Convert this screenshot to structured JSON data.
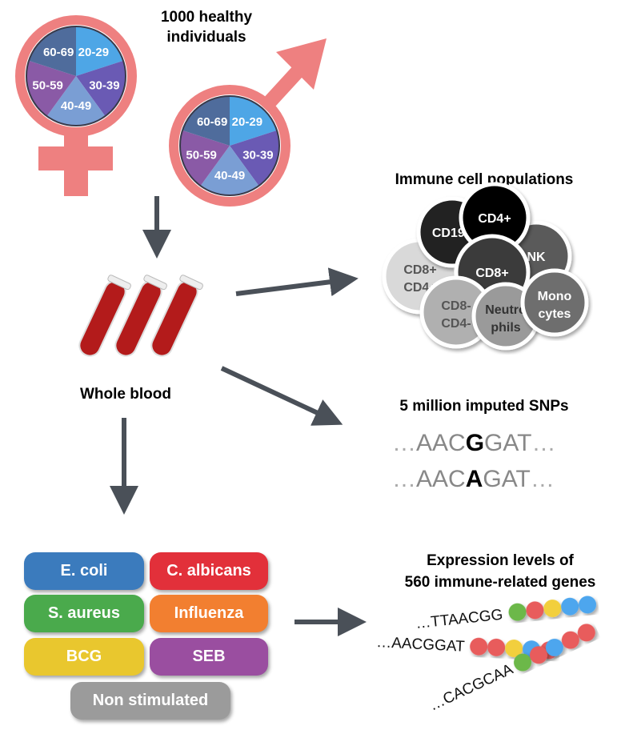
{
  "cohort": {
    "title_line1": "1000 healthy",
    "title_line2": "individuals",
    "age_groups": [
      {
        "label": "20-29",
        "color": "#4ea6e6"
      },
      {
        "label": "30-39",
        "color": "#6a5ab4"
      },
      {
        "label": "40-49",
        "color": "#7a9ed4"
      },
      {
        "label": "50-59",
        "color": "#8a5aa6"
      },
      {
        "label": "60-69",
        "color": "#4f6c9c"
      }
    ],
    "symbol_color": "#ee8080"
  },
  "blood": {
    "label": "Whole blood"
  },
  "cells": {
    "title": "Immune cell populations",
    "items": [
      {
        "l1": "CD8+",
        "l2": "CD4+",
        "fill": "#d9d9d9",
        "text": "#555"
      },
      {
        "l1": "CD19+",
        "l2": "",
        "fill": "#222",
        "text": "#fff"
      },
      {
        "l1": "NK",
        "l2": "",
        "fill": "#5a5a5a",
        "text": "#fff"
      },
      {
        "l1": "CD4+",
        "l2": "",
        "fill": "#000",
        "text": "#fff"
      },
      {
        "l1": "CD8+",
        "l2": "",
        "fill": "#3a3a3a",
        "text": "#fff"
      },
      {
        "l1": "CD8-",
        "l2": "CD4-",
        "fill": "#b0b0b0",
        "text": "#555"
      },
      {
        "l1": "Neutro",
        "l2": "phils",
        "fill": "#9a9a9a",
        "text": "#333"
      },
      {
        "l1": "Mono",
        "l2": "cytes",
        "fill": "#6e6e6e",
        "text": "#fff"
      }
    ]
  },
  "snps": {
    "title": "5 million imputed SNPs",
    "seq1": {
      "prefix": "AAC",
      "allele": "G",
      "suffix": "GAT"
    },
    "seq2": {
      "prefix": "AAC",
      "allele": "A",
      "suffix": "GAT"
    },
    "dots": "…"
  },
  "expression": {
    "title_line1": "Expression levels of",
    "title_line2": "560 immune-related genes",
    "reads": [
      {
        "seq": "…TTAACGG",
        "beads": [
          "#6cb84a",
          "#e85c5c",
          "#f2cf3e",
          "#4ea6ee",
          "#4ea6ee"
        ]
      },
      {
        "seq": "…AACGGAT",
        "beads": [
          "#e85c5c",
          "#e85c5c",
          "#f2cf3e",
          "#4ea6ee",
          "#e85c5c"
        ]
      },
      {
        "seq": "…CACGCAA",
        "beads": [
          "#6cb84a",
          "#e85c5c",
          "#4ea6ee",
          "#e85c5c",
          "#e85c5c"
        ]
      }
    ]
  },
  "stimuli": [
    {
      "label": "E. coli",
      "color": "#3b7bbd"
    },
    {
      "label": "C. albicans",
      "color": "#e2303a"
    },
    {
      "label": "S. aureus",
      "color": "#4aaa4c"
    },
    {
      "label": "Influenza",
      "color": "#f27f30"
    },
    {
      "label": "BCG",
      "color": "#e9c72e"
    },
    {
      "label": "SEB",
      "color": "#9a4ea0"
    },
    {
      "label": "Non stimulated",
      "color": "#9b9b9b"
    }
  ]
}
